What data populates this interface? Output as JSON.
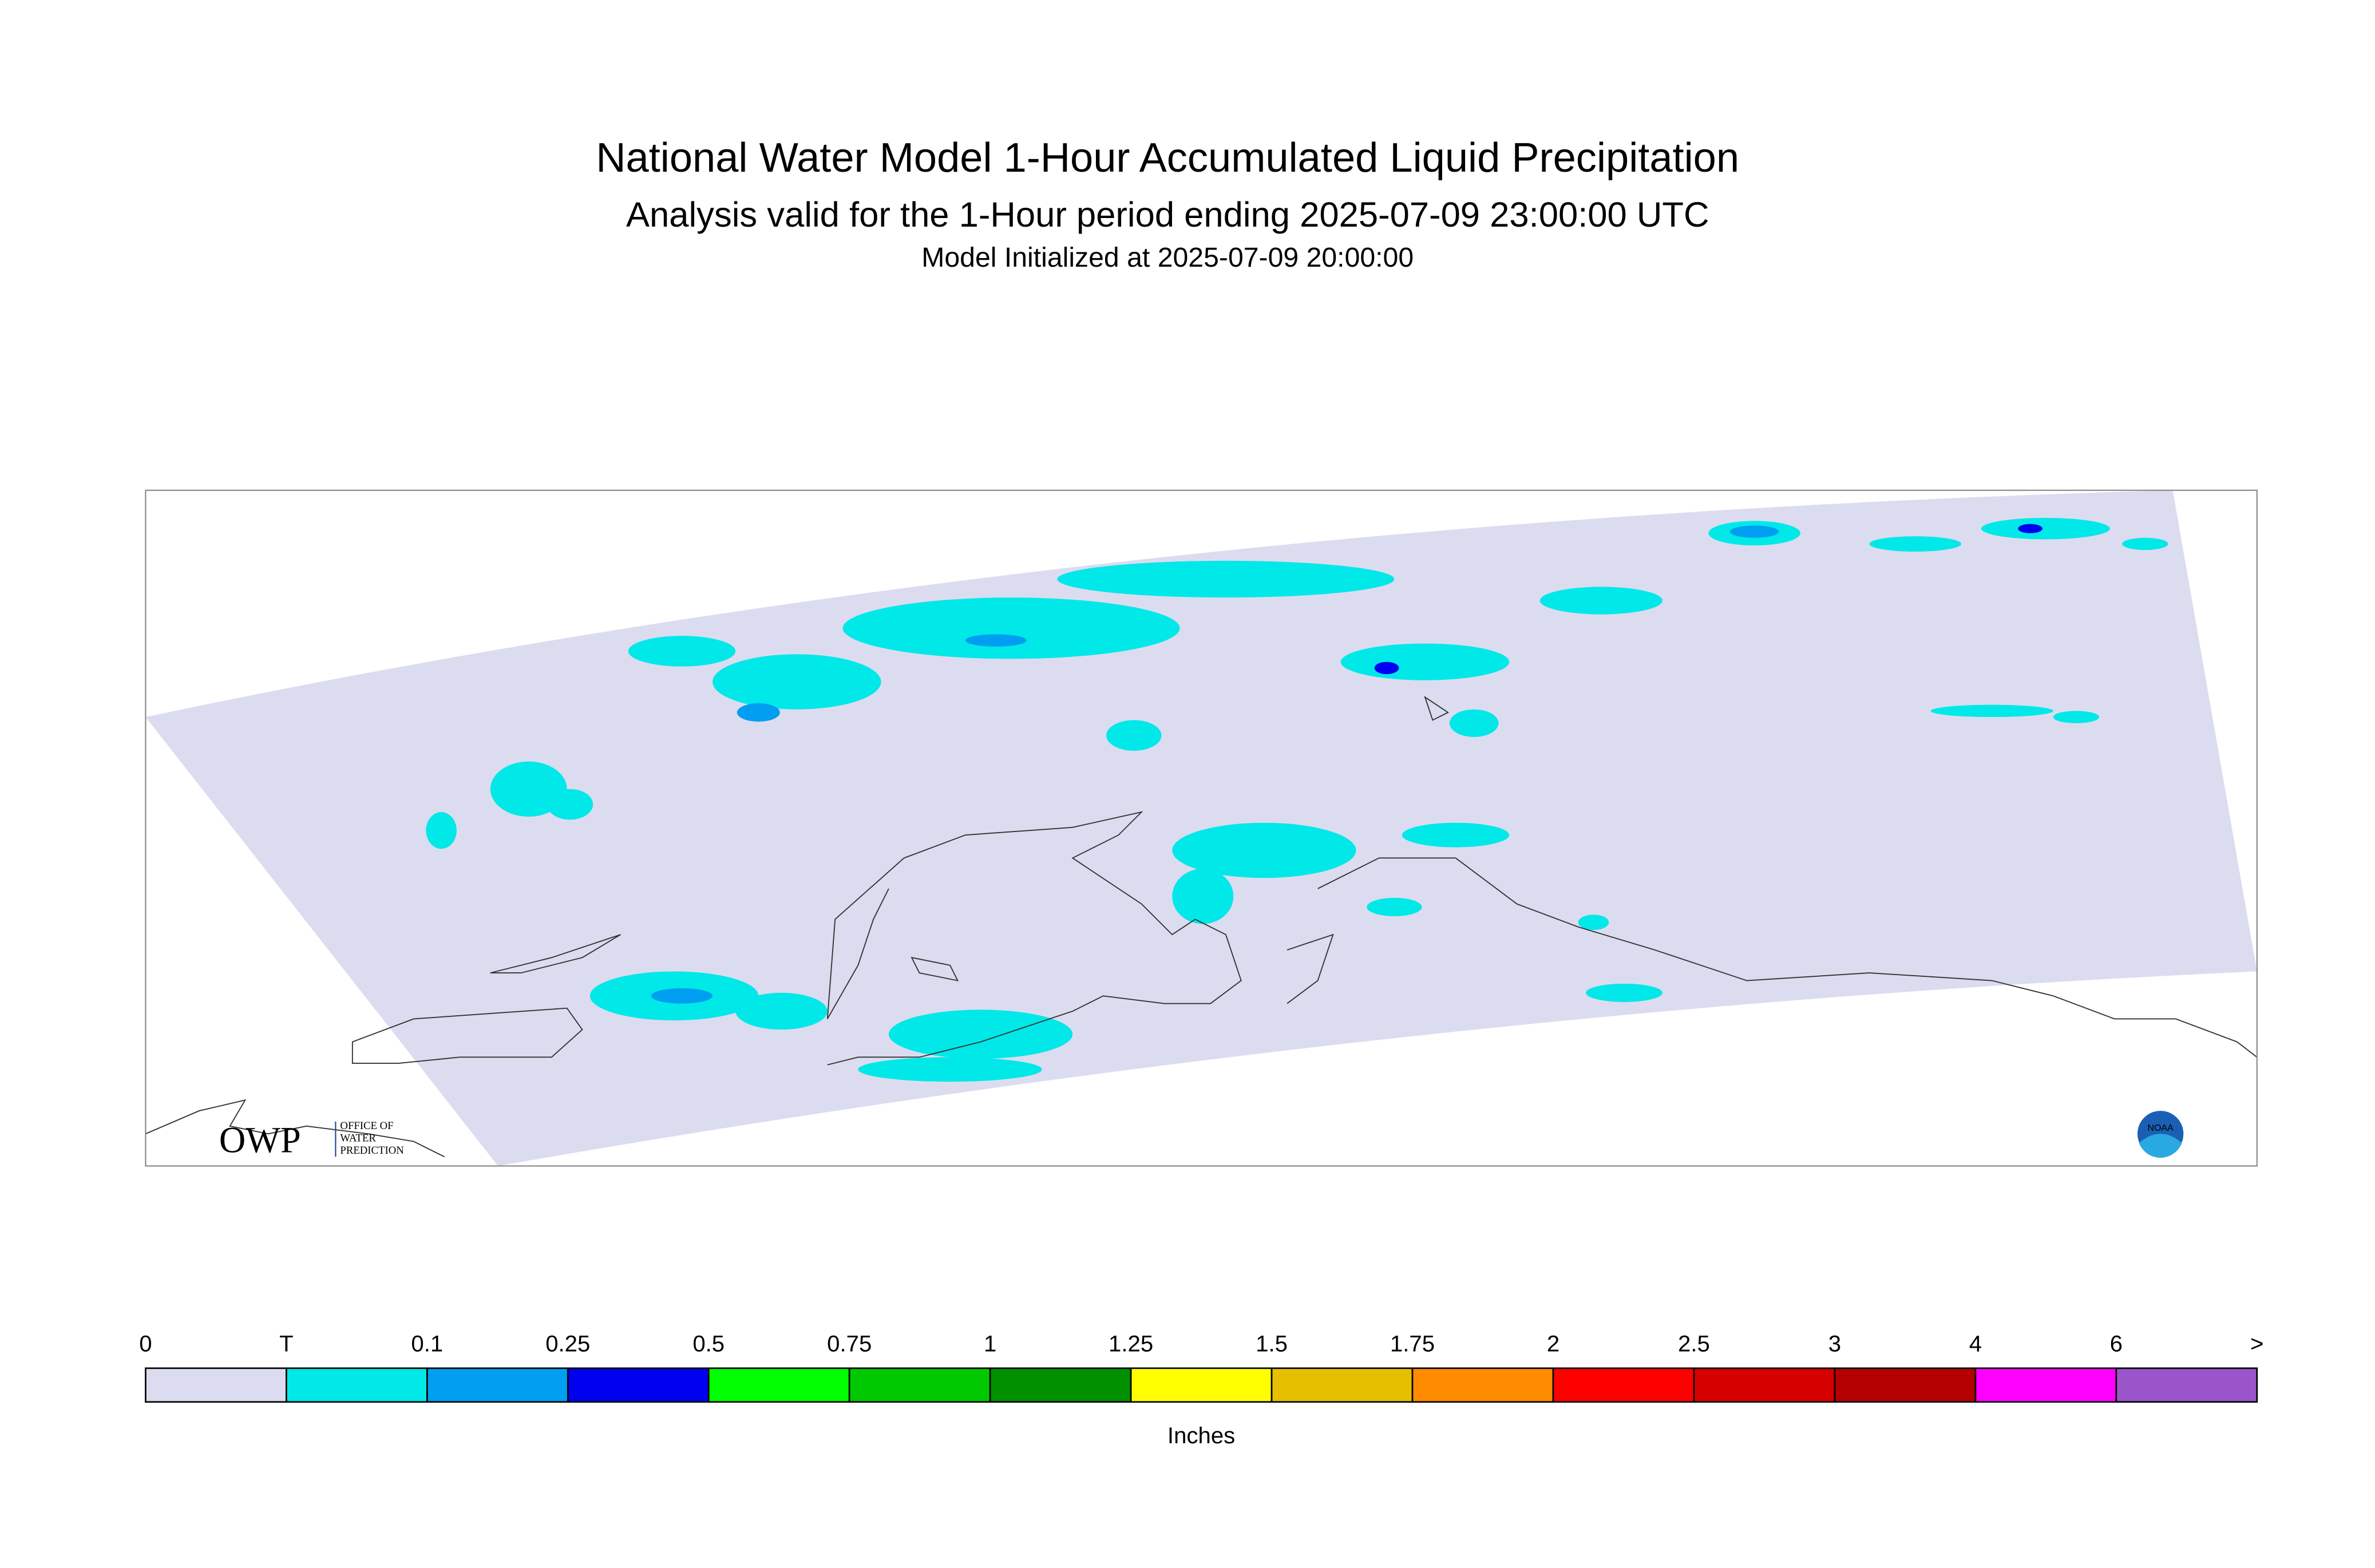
{
  "header": {
    "title": "National Water Model 1-Hour Accumulated Liquid Precipitation",
    "subtitle": "Analysis valid for the 1-Hour period ending 2025-07-09 23:00:00 UTC",
    "initialized": "Model Initialized at 2025-07-09 20:00:00"
  },
  "logo": {
    "name": "OWP",
    "line1": "OFFICE OF",
    "line2": "WATER",
    "line3": "PREDICTION",
    "noaa": "NOAA"
  },
  "legend": {
    "labels": [
      "0",
      "T",
      "0.1",
      "0.25",
      "0.5",
      "0.75",
      "1",
      "1.25",
      "1.5",
      "1.75",
      "2",
      "2.5",
      "3",
      "4",
      "6",
      ">"
    ],
    "colors": [
      "#dcdcf0",
      "#00e8e8",
      "#009ef0",
      "#0000f0",
      "#00ff00",
      "#00c800",
      "#009000",
      "#ffff00",
      "#e6c000",
      "#ff8c00",
      "#ff0000",
      "#d60000",
      "#b40000",
      "#ff00ff",
      "#9955c9"
    ],
    "unit": "Inches"
  }
}
